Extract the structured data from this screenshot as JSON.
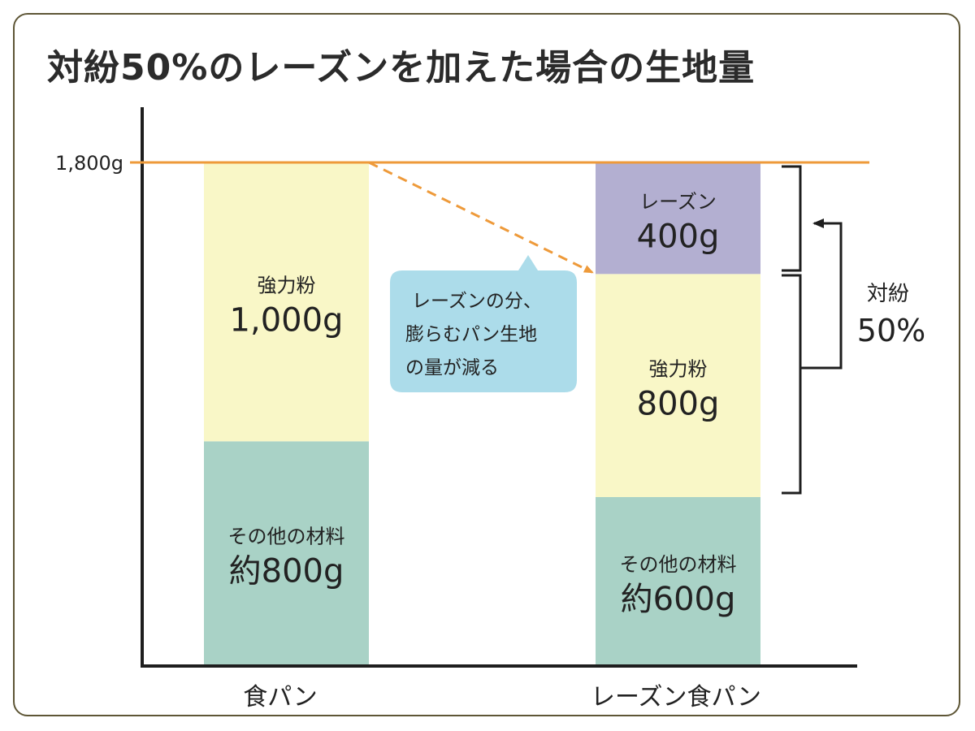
{
  "chart_data": {
    "type": "bar",
    "stacked": true,
    "title": "対紛50%のレーズンを加えた場合の生地量",
    "categories": [
      "食パン",
      "レーズン食パン"
    ],
    "ylim": [
      0,
      1800
    ],
    "reference_line": {
      "value": 1800,
      "label": "1,800g",
      "color": "#ee9a3a"
    },
    "bars": [
      {
        "category": "食パン",
        "segments": [
          {
            "name": "その他の材料",
            "value": 800,
            "value_label": "約800g",
            "color": "#a9d2c6"
          },
          {
            "name": "強力粉",
            "value": 1000,
            "value_label": "1,000g",
            "color": "#f9f7c7"
          }
        ]
      },
      {
        "category": "レーズン食パン",
        "segments": [
          {
            "name": "その他の材料",
            "value": 600,
            "value_label": "約600g",
            "color": "#a9d2c6"
          },
          {
            "name": "強力粉",
            "value": 800,
            "value_label": "800g",
            "color": "#f9f7c7"
          },
          {
            "name": "レーズン",
            "value": 400,
            "value_label": "400g",
            "color": "#b3afd1"
          }
        ]
      }
    ],
    "callout": {
      "lines": [
        "レーズンの分、",
        "膨らむパン生地",
        "の量が減る"
      ],
      "color": "#acdcea"
    },
    "ratio_annotation": {
      "name": "対紛",
      "value": "50%"
    },
    "colors": {
      "reference_line": "#ee9a3a",
      "axis": "#1e1e1e",
      "border": "#5e5636"
    }
  }
}
